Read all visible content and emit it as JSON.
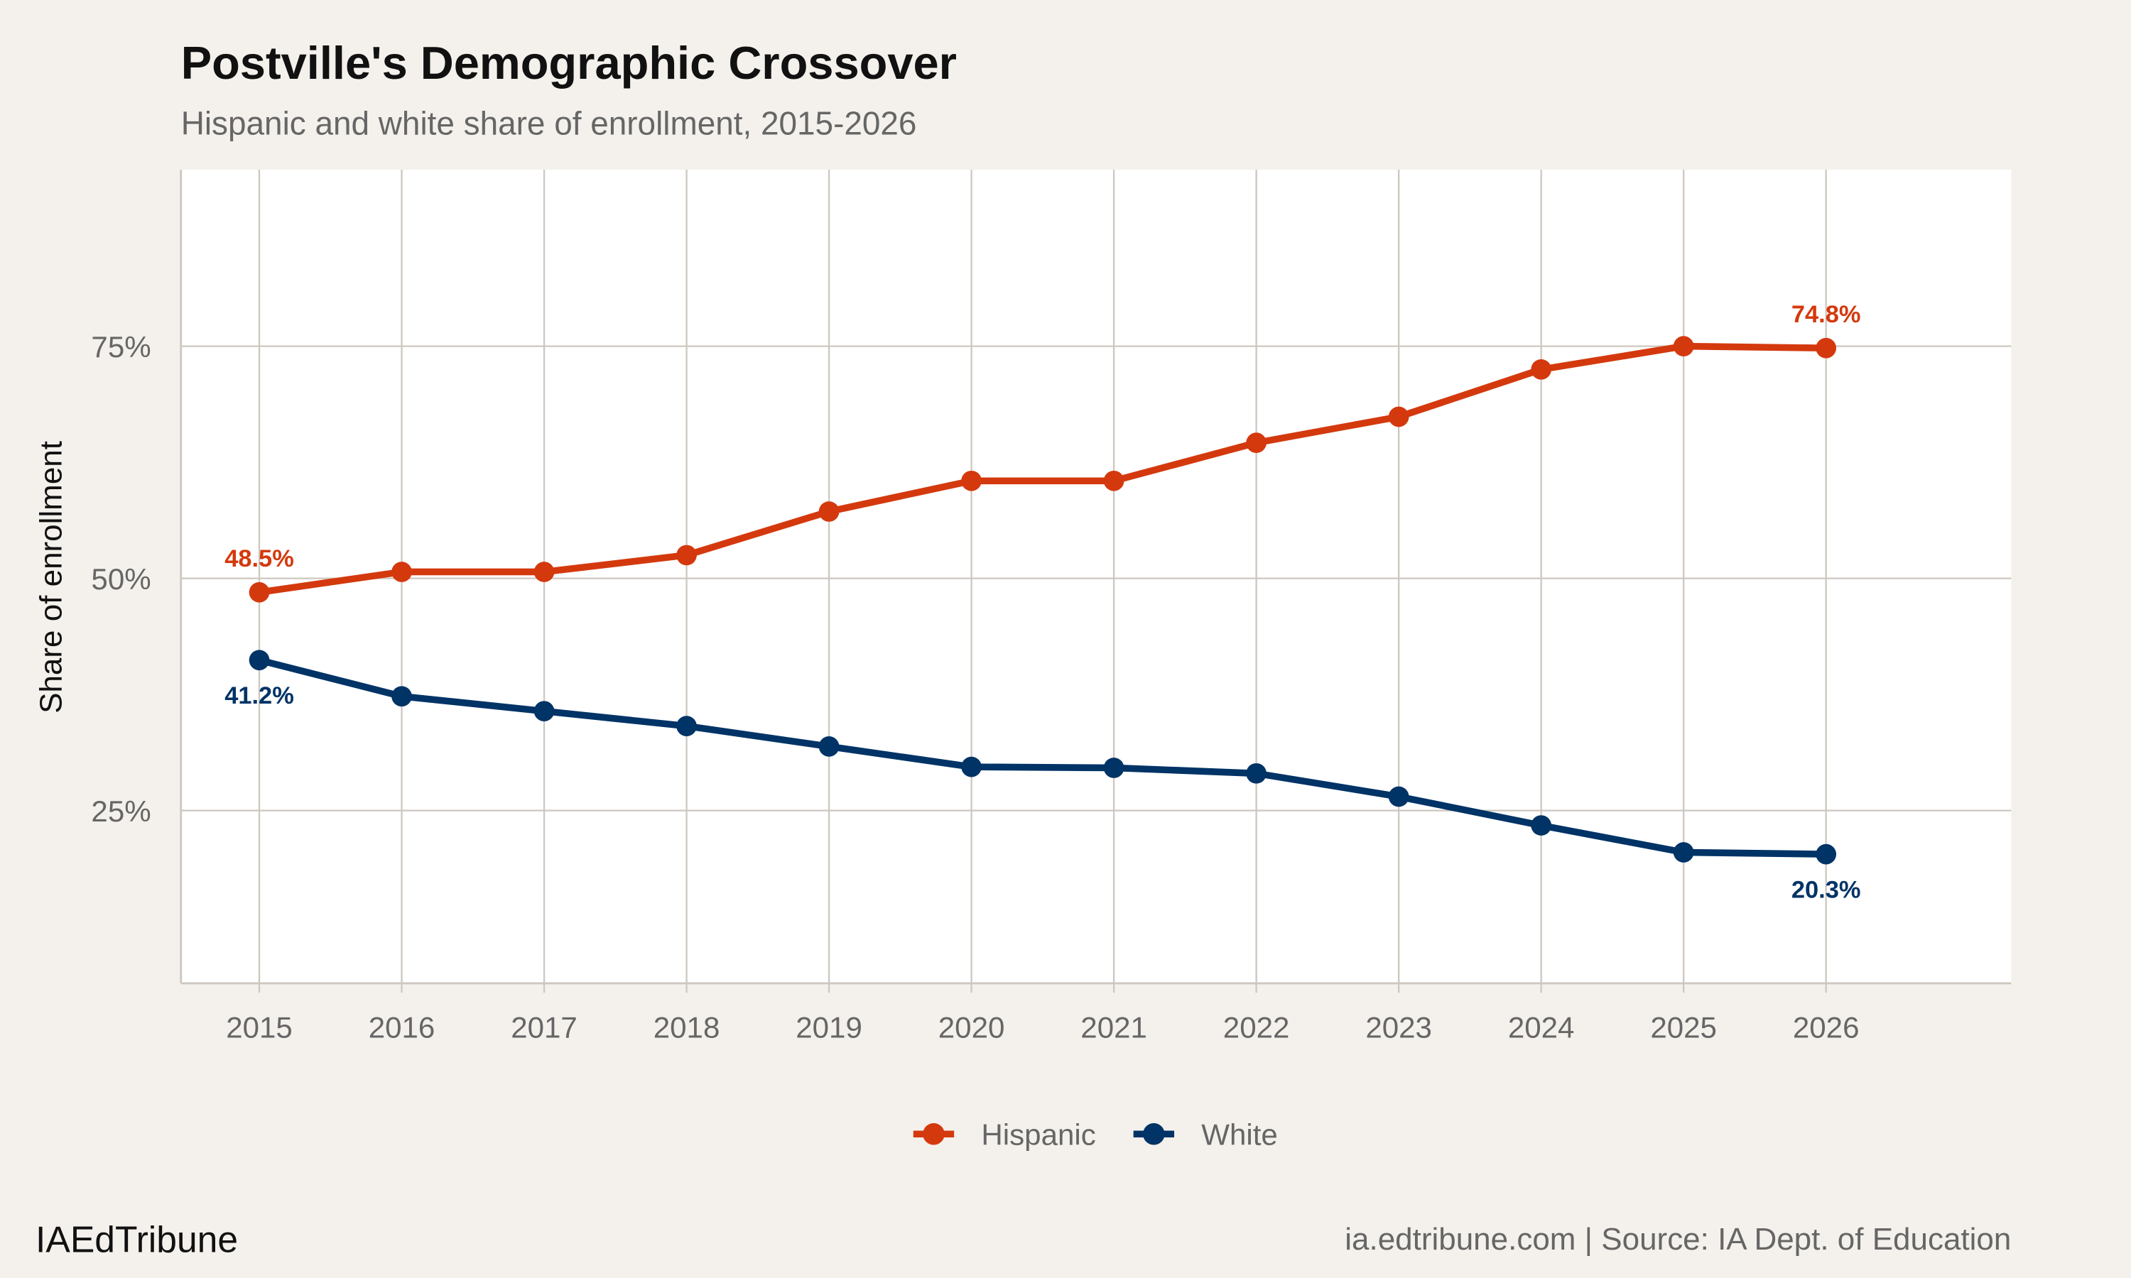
{
  "chart_data": {
    "type": "line",
    "title": "Postville's Demographic Crossover",
    "subtitle": "Hispanic and white share of enrollment, 2015-2026",
    "xlabel": "",
    "ylabel": "Share of enrollment",
    "x": [
      2015,
      2016,
      2017,
      2018,
      2019,
      2020,
      2021,
      2022,
      2023,
      2024,
      2025,
      2026
    ],
    "x_tick_labels": [
      "2015",
      "2016",
      "2017",
      "2018",
      "2019",
      "2020",
      "2021",
      "2022",
      "2023",
      "2024",
      "2025",
      "2026"
    ],
    "y_ticks": [
      25,
      50,
      75
    ],
    "y_tick_labels": [
      "25%",
      "50%",
      "75%"
    ],
    "xlim": [
      2014.45,
      2027.3
    ],
    "ylim": [
      6.4,
      94
    ],
    "grid": true,
    "legend_position": "bottom",
    "series": [
      {
        "name": "Hispanic",
        "color": "#d4390e",
        "values": [
          48.5,
          50.7,
          50.7,
          52.5,
          57.2,
          60.5,
          60.5,
          64.6,
          67.4,
          72.5,
          75.0,
          74.8
        ],
        "labels": [
          {
            "index": 0,
            "text": "48.5%",
            "pos": "above"
          },
          {
            "index": 11,
            "text": "74.8%",
            "pos": "above"
          }
        ]
      },
      {
        "name": "White",
        "color": "#003366",
        "values": [
          41.2,
          37.3,
          35.7,
          34.1,
          31.9,
          29.7,
          29.6,
          29.0,
          26.5,
          23.4,
          20.5,
          20.3
        ],
        "labels": [
          {
            "index": 0,
            "text": "41.2%",
            "pos": "below"
          },
          {
            "index": 11,
            "text": "20.3%",
            "pos": "below"
          }
        ]
      }
    ]
  },
  "footer": {
    "brand": "IAEdTribune",
    "source": "ia.edtribune.com | Source: IA Dept. of Education"
  },
  "colors": {
    "background": "#f4f1ec",
    "panel": "#ffffff",
    "grid": "#cdc7bf"
  }
}
